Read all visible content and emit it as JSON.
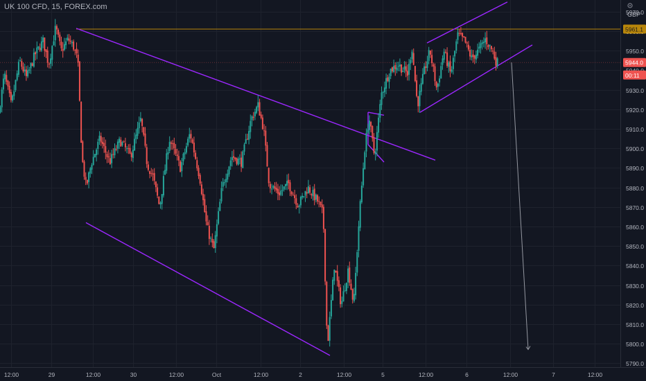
{
  "symbol": {
    "title": "UK 100 CFD, 15, FOREX.com"
  },
  "currency": "GBP",
  "icons": {
    "settings": "gear-icon"
  },
  "colors": {
    "background": "#131722",
    "up": "#26a69a",
    "down": "#ef5350",
    "trendline": "#9c27ff",
    "resistance": "#b8860b",
    "text": "#b2b5be"
  },
  "chart_data": {
    "type": "candlestick",
    "title": "UK 100 CFD, 15, FOREX.com",
    "ylabel": "GBP",
    "ylim": [
      5788,
      5976
    ],
    "y_ticks": [
      5790.0,
      5800.0,
      5810.0,
      5820.0,
      5830.0,
      5840.0,
      5850.0,
      5860.0,
      5870.0,
      5880.0,
      5890.0,
      5900.0,
      5910.0,
      5920.0,
      5930.0,
      5940.0,
      5950.0,
      5960.0,
      5970.0
    ],
    "x_ticks": [
      "12:00",
      "29",
      "12:00",
      "30",
      "12:00",
      "Oct",
      "12:00",
      "2",
      "12:00",
      "5",
      "12:00",
      "6",
      "12:00",
      "7",
      "12:00"
    ],
    "grid": true,
    "price_labels": [
      {
        "text": "5961.1",
        "value": 5961.1,
        "color": "#b8860b"
      },
      {
        "text": "5944.0",
        "value": 5944.0,
        "color": "#ef5350"
      },
      {
        "text": "00:11",
        "value": 5937.6,
        "color": "#ef5350"
      }
    ],
    "series": [
      {
        "name": "",
        "waypoints": [
          {
            "t": 0,
            "p": 5918
          },
          {
            "t": 8,
            "p": 5938
          },
          {
            "t": 18,
            "p": 5922
          },
          {
            "t": 30,
            "p": 5945
          },
          {
            "t": 40,
            "p": 5936
          },
          {
            "t": 52,
            "p": 5948
          },
          {
            "t": 64,
            "p": 5955
          },
          {
            "t": 72,
            "p": 5943
          },
          {
            "t": 82,
            "p": 5962
          },
          {
            "t": 90,
            "p": 5950
          },
          {
            "t": 100,
            "p": 5956
          },
          {
            "t": 108,
            "p": 5952
          },
          {
            "t": 114,
            "p": 5945
          },
          {
            "t": 120,
            "p": 5895
          },
          {
            "t": 126,
            "p": 5880
          },
          {
            "t": 134,
            "p": 5893
          },
          {
            "t": 146,
            "p": 5905
          },
          {
            "t": 160,
            "p": 5893
          },
          {
            "t": 175,
            "p": 5904
          },
          {
            "t": 190,
            "p": 5896
          },
          {
            "t": 205,
            "p": 5915
          },
          {
            "t": 214,
            "p": 5892
          },
          {
            "t": 222,
            "p": 5886
          },
          {
            "t": 232,
            "p": 5870
          },
          {
            "t": 246,
            "p": 5905
          },
          {
            "t": 262,
            "p": 5890
          },
          {
            "t": 276,
            "p": 5908
          },
          {
            "t": 290,
            "p": 5885
          },
          {
            "t": 300,
            "p": 5860
          },
          {
            "t": 310,
            "p": 5848
          },
          {
            "t": 322,
            "p": 5880
          },
          {
            "t": 336,
            "p": 5896
          },
          {
            "t": 350,
            "p": 5893
          },
          {
            "t": 364,
            "p": 5915
          },
          {
            "t": 374,
            "p": 5922
          },
          {
            "t": 382,
            "p": 5910
          },
          {
            "t": 390,
            "p": 5882
          },
          {
            "t": 404,
            "p": 5877
          },
          {
            "t": 418,
            "p": 5882
          },
          {
            "t": 432,
            "p": 5871
          },
          {
            "t": 446,
            "p": 5880
          },
          {
            "t": 460,
            "p": 5873
          },
          {
            "t": 468,
            "p": 5866
          },
          {
            "t": 474,
            "p": 5798
          },
          {
            "t": 484,
            "p": 5840
          },
          {
            "t": 494,
            "p": 5820
          },
          {
            "t": 504,
            "p": 5838
          },
          {
            "t": 512,
            "p": 5820
          },
          {
            "t": 520,
            "p": 5865
          },
          {
            "t": 528,
            "p": 5900
          },
          {
            "t": 534,
            "p": 5916
          },
          {
            "t": 542,
            "p": 5896
          },
          {
            "t": 552,
            "p": 5928
          },
          {
            "t": 564,
            "p": 5940
          },
          {
            "t": 576,
            "p": 5943
          },
          {
            "t": 590,
            "p": 5938
          },
          {
            "t": 596,
            "p": 5952
          },
          {
            "t": 604,
            "p": 5922
          },
          {
            "t": 614,
            "p": 5940
          },
          {
            "t": 622,
            "p": 5950
          },
          {
            "t": 632,
            "p": 5930
          },
          {
            "t": 642,
            "p": 5950
          },
          {
            "t": 652,
            "p": 5938
          },
          {
            "t": 662,
            "p": 5958
          },
          {
            "t": 672,
            "p": 5955
          },
          {
            "t": 682,
            "p": 5946
          },
          {
            "t": 692,
            "p": 5950
          },
          {
            "t": 702,
            "p": 5956
          },
          {
            "t": 712,
            "p": 5950
          },
          {
            "t": 718,
            "p": 5944
          }
        ]
      }
    ],
    "drawings": [
      {
        "kind": "horizontal",
        "name": "resistance-line",
        "value": 5961.1,
        "color": "#b8860b"
      },
      {
        "kind": "trend",
        "name": "channel-upper",
        "points": [
          [
            110,
            5961.5
          ],
          [
            628,
            5894.0
          ]
        ]
      },
      {
        "kind": "trend",
        "name": "channel-lower",
        "points": [
          [
            124,
            5862.0
          ],
          [
            476,
            5794.0
          ]
        ]
      },
      {
        "kind": "trend",
        "name": "flag-upper",
        "points": [
          [
            616,
            5954.0
          ],
          [
            732,
            5975.0
          ]
        ]
      },
      {
        "kind": "trend",
        "name": "flag-lower",
        "points": [
          [
            606,
            5918.5
          ],
          [
            768,
            5953.0
          ]
        ]
      },
      {
        "kind": "trend",
        "name": "mini-top",
        "points": [
          [
            531,
            5918.5
          ],
          [
            554,
            5917.0
          ]
        ]
      },
      {
        "kind": "trend",
        "name": "mini-bottom",
        "points": [
          [
            531,
            5902.0
          ],
          [
            554,
            5893.0
          ]
        ]
      },
      {
        "kind": "trend",
        "name": "mini-left",
        "points": [
          [
            531,
            5918.5
          ],
          [
            531,
            5902.0
          ]
        ]
      }
    ],
    "projection": {
      "from": [
        738,
        5944.0
      ],
      "to": [
        762,
        5797.0
      ]
    }
  }
}
